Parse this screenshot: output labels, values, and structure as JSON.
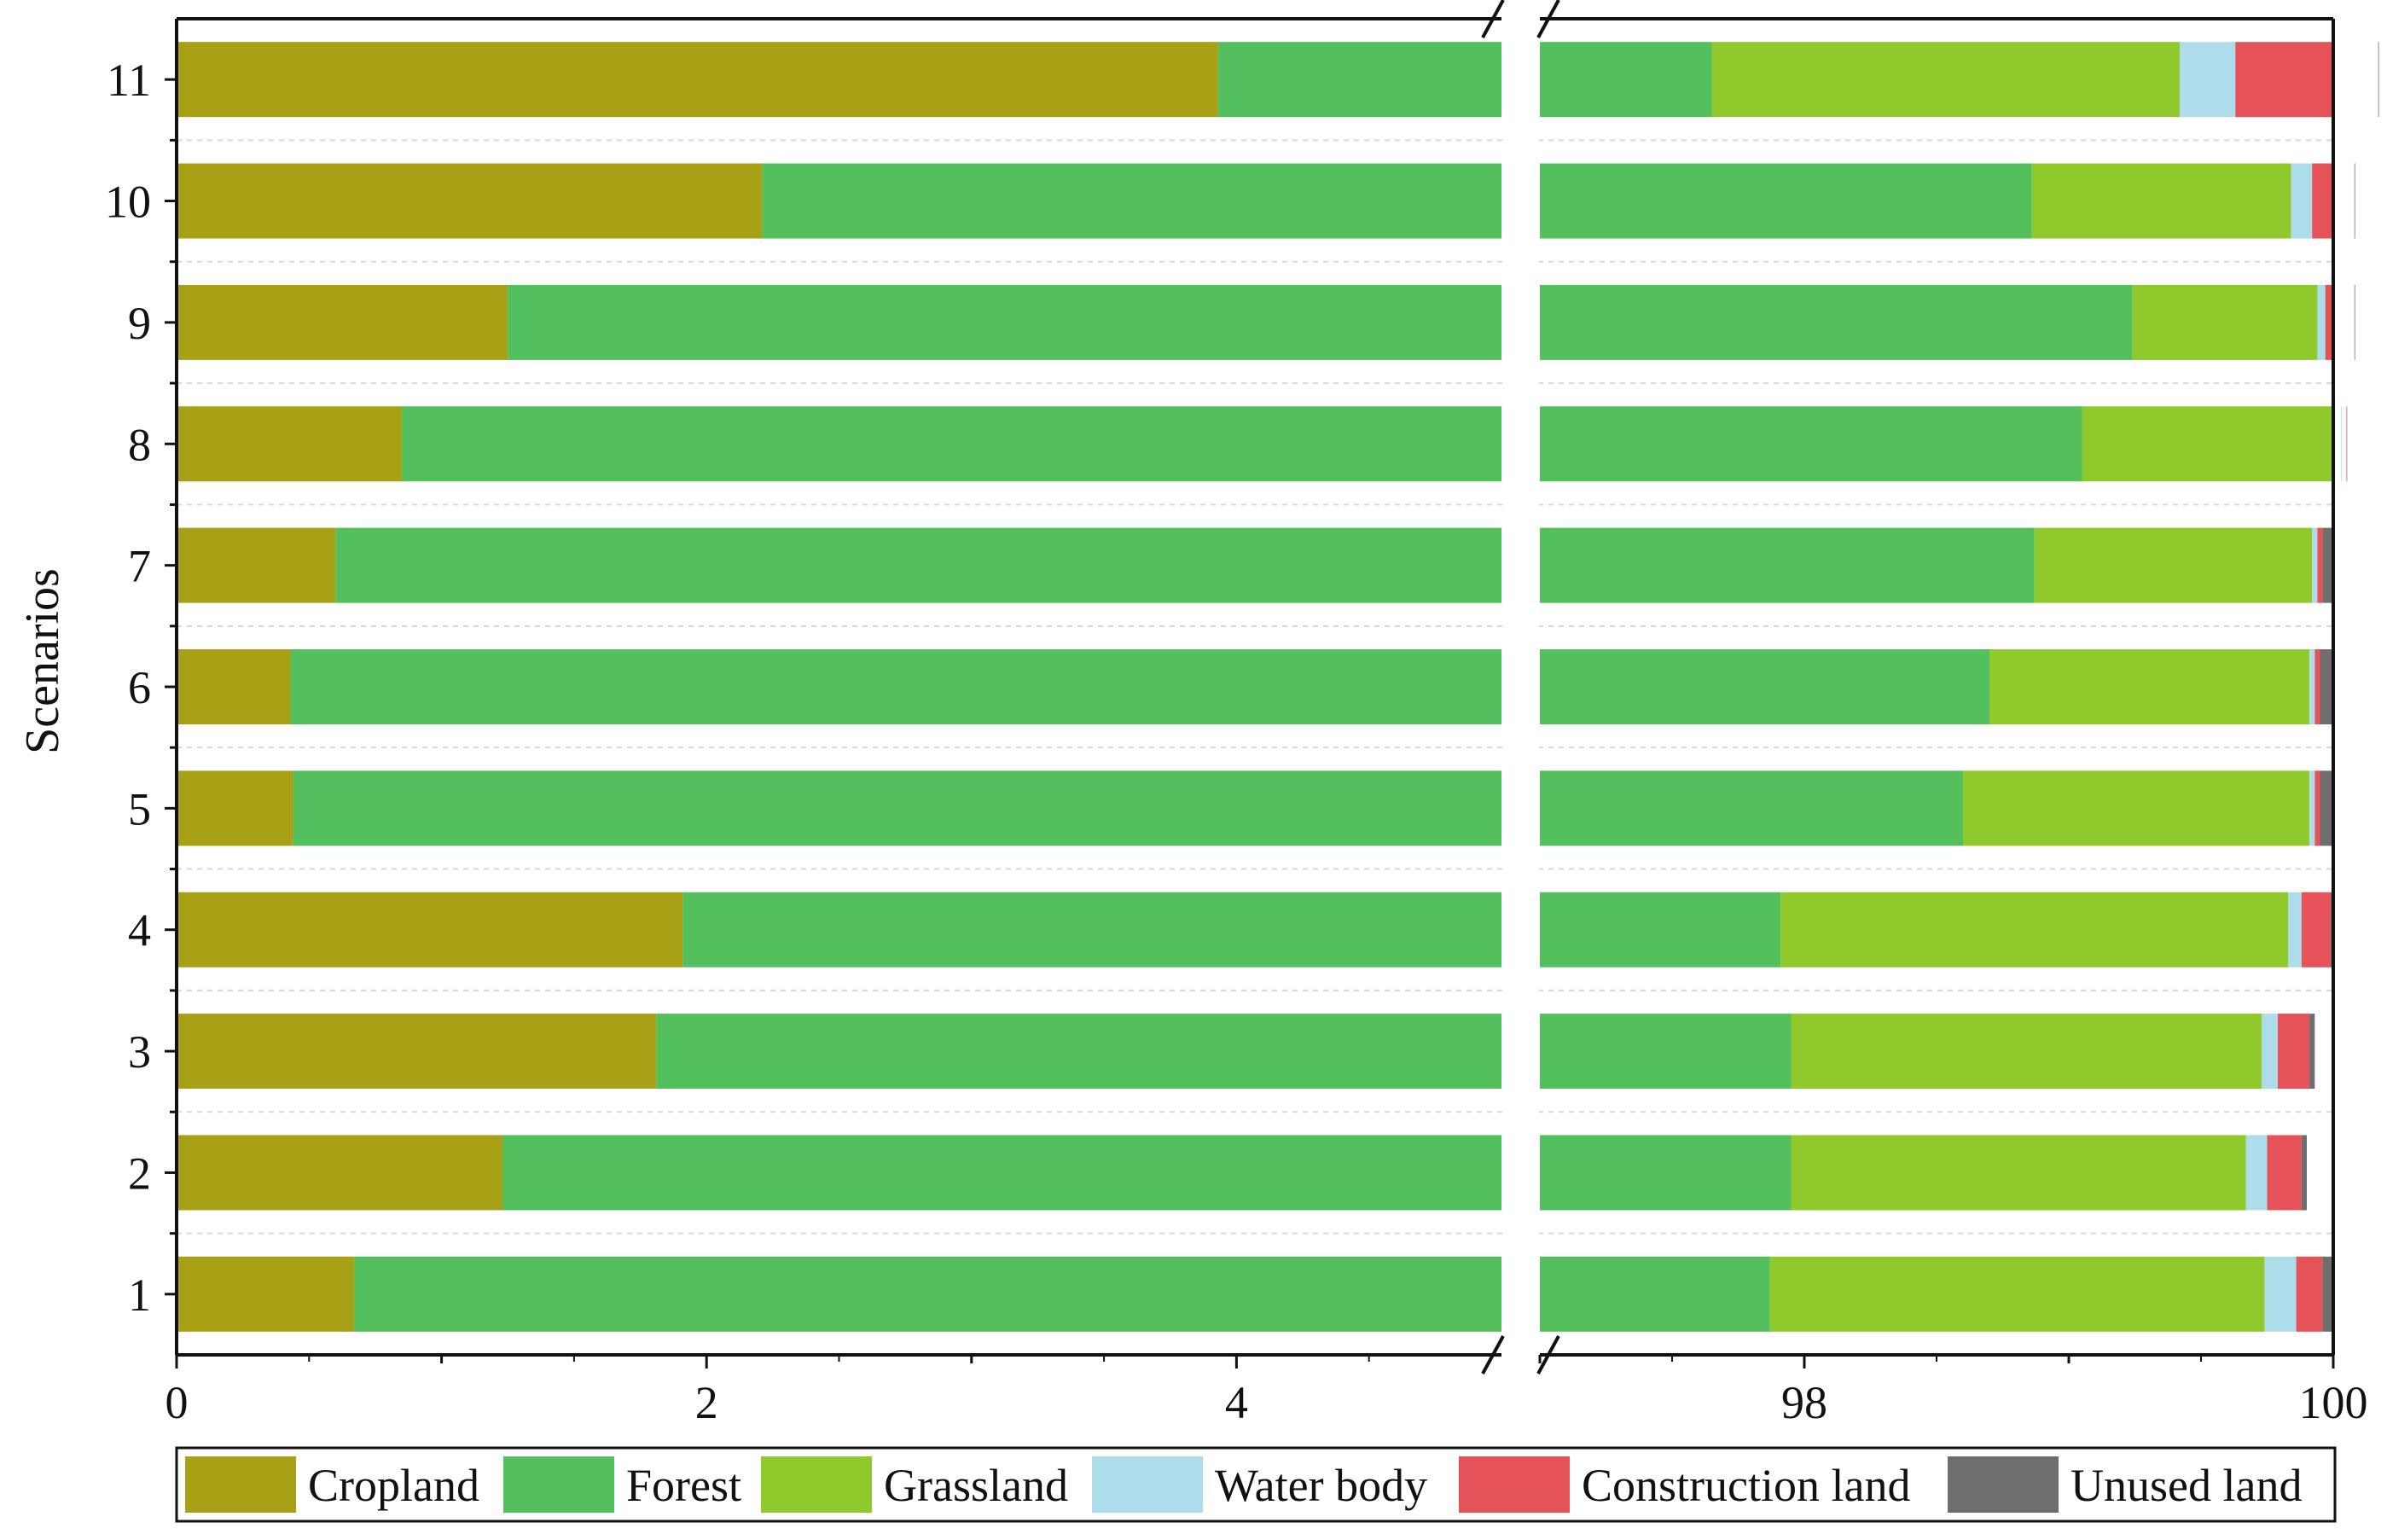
{
  "chart_data": {
    "type": "bar",
    "orientation": "horizontal",
    "stacked": true,
    "axis_break": {
      "from": 5,
      "to": 97
    },
    "ylabel": "Scenarios",
    "xlabel": "",
    "xlim": [
      0,
      100
    ],
    "x_ticks": [
      "0",
      "2",
      "4",
      "98",
      "100"
    ],
    "categories": [
      "1",
      "2",
      "3",
      "4",
      "5",
      "6",
      "7",
      "8",
      "9",
      "10",
      "11"
    ],
    "series": [
      {
        "name": "Cropland",
        "color": "#A8A015",
        "values": [
          0.67,
          1.23,
          1.81,
          1.91,
          0.44,
          0.43,
          0.6,
          0.85,
          1.25,
          2.21,
          3.93
        ]
      },
      {
        "name": "Forest",
        "color": "#53BF5D",
        "values": [
          97.2,
          96.72,
          96.14,
          96.0,
          98.16,
          98.27,
          98.27,
          98.2,
          97.99,
          96.65,
          93.72
        ]
      },
      {
        "name": "Grassland",
        "color": "#8FC92B",
        "values": [
          1.87,
          1.72,
          1.78,
          1.92,
          1.31,
          1.21,
          1.05,
          0.98,
          0.7,
          0.98,
          1.77
        ]
      },
      {
        "name": "Water body",
        "color": "#ADDDEB",
        "values": [
          0.12,
          0.08,
          0.06,
          0.05,
          0.02,
          0.02,
          0.02,
          0.02,
          0.03,
          0.08,
          0.21
        ]
      },
      {
        "name": "Construction land",
        "color": "#E55257",
        "values": [
          0.1,
          0.13,
          0.12,
          0.11,
          0.02,
          0.02,
          0.02,
          0.05,
          0.11,
          0.16,
          0.54
        ]
      },
      {
        "name": "Unused land",
        "color": "#6E6E6E",
        "values": [
          0.04,
          0.02,
          0.02,
          0.01,
          0.05,
          0.05,
          0.04,
          0.0,
          0.02,
          0.02,
          0.09
        ]
      }
    ]
  }
}
